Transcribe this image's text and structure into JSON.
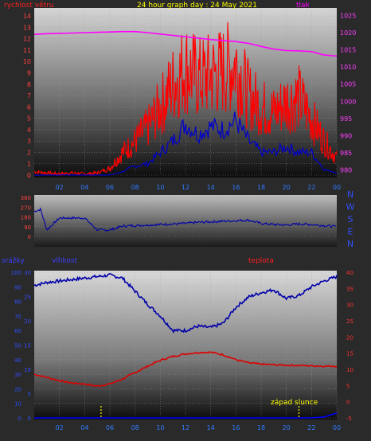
{
  "chart_data": [
    {
      "type": "line",
      "panel": "wind-pressure",
      "title": "24 hour graph day : 24 May 2021",
      "ylabel_left": "rychlost větru",
      "ylabel_right": "tlak",
      "x_ticks": [
        "02",
        "04",
        "06",
        "08",
        "10",
        "12",
        "14",
        "16",
        "18",
        "20",
        "22",
        "00"
      ],
      "y_left_ticks": [
        "0",
        "1",
        "2",
        "3",
        "4",
        "5",
        "6",
        "7",
        "8",
        "9",
        "10",
        "11",
        "12",
        "13",
        "14"
      ],
      "y_right_ticks": [
        "980",
        "985",
        "990",
        "995",
        "1000",
        "1005",
        "1010",
        "1015",
        "1020",
        "1025"
      ],
      "ylim_left": [
        0,
        14.5
      ],
      "ylim_right": [
        978.5,
        1026.5
      ],
      "x_hours": [
        0,
        1,
        2,
        3,
        4,
        5,
        6,
        7,
        8,
        9,
        10,
        11,
        12,
        13,
        14,
        15,
        16,
        17,
        18,
        19,
        20,
        21,
        22,
        23,
        24
      ],
      "series": [
        {
          "name": "tlak",
          "color": "#ff00ff",
          "axis": "right",
          "values": [
            1019.5,
            1019.7,
            1019.8,
            1019.9,
            1020.0,
            1020.1,
            1020.2,
            1020.3,
            1020.3,
            1020.0,
            1019.6,
            1019.2,
            1018.8,
            1018.4,
            1018.0,
            1017.7,
            1017.4,
            1016.9,
            1016.0,
            1015.2,
            1014.8,
            1014.7,
            1014.5,
            1013.5,
            1013.2
          ]
        },
        {
          "color": "#ff0000",
          "axis": "left",
          "values": [
            0.3,
            0.2,
            0.1,
            0.2,
            0.1,
            0.2,
            0.6,
            2.0,
            3.0,
            4.2,
            6.0,
            8.0,
            9.5,
            8.5,
            8.8,
            9.2,
            9.8,
            7.0,
            6.0,
            5.5,
            6.5,
            6.8,
            5.0,
            3.0,
            1.5
          ]
        },
        {
          "color": "#0000cc",
          "axis": "left",
          "values": [
            0.0,
            0.0,
            0.0,
            0.0,
            0.0,
            0.0,
            0.0,
            0.3,
            0.8,
            1.0,
            2.0,
            3.0,
            4.5,
            3.6,
            4.3,
            4.0,
            4.8,
            3.0,
            2.0,
            2.0,
            2.5,
            2.0,
            2.0,
            0.5,
            0.2
          ]
        }
      ]
    },
    {
      "type": "line",
      "panel": "wind-direction",
      "y_ticks": [
        "360",
        "270",
        "180",
        "90",
        "0"
      ],
      "ylim": [
        0,
        360
      ],
      "direction_labels": [
        "N",
        "W",
        "S",
        "E",
        "N"
      ],
      "x_hours": [
        0,
        0.5,
        1,
        2,
        3,
        4,
        5,
        6,
        7,
        8,
        9,
        10,
        11,
        12,
        13,
        14,
        15,
        16,
        17,
        18,
        19,
        20,
        21,
        22,
        23,
        24
      ],
      "series": [
        {
          "color": "#0000aa",
          "values": [
            230,
            250,
            60,
            170,
            170,
            170,
            60,
            60,
            95,
            100,
            105,
            110,
            115,
            120,
            130,
            135,
            140,
            145,
            150,
            120,
            110,
            105,
            115,
            110,
            100,
            90
          ]
        }
      ]
    },
    {
      "type": "line",
      "panel": "humidity-temperature-rain",
      "ylabel_left1": "srážky",
      "ylabel_left2": "vlhkost",
      "ylabel_right": "teplota",
      "annotation": "západ slunce",
      "x_ticks": [
        "02",
        "04",
        "06",
        "08",
        "10",
        "12",
        "14",
        "16",
        "18",
        "20",
        "22",
        "00"
      ],
      "y_rain_ticks": [
        "0",
        "5",
        "10",
        "15",
        "20",
        "25",
        "30"
      ],
      "y_humidity_ticks": [
        "0",
        "10",
        "20",
        "30",
        "40",
        "50",
        "60",
        "70",
        "80",
        "90",
        "100"
      ],
      "y_temp_ticks": [
        "-5",
        "0",
        "5",
        "10",
        "15",
        "20",
        "25",
        "30",
        "35",
        "40"
      ],
      "ylim_rain": [
        0,
        30
      ],
      "ylim_humidity": [
        0,
        100
      ],
      "ylim_temp": [
        -5,
        40
      ],
      "x_hours": [
        0,
        1,
        2,
        3,
        4,
        5,
        6,
        7,
        8,
        9,
        10,
        11,
        12,
        13,
        14,
        15,
        16,
        17,
        18,
        19,
        20,
        21,
        22,
        23,
        24
      ],
      "series": [
        {
          "name": "vlhkost",
          "color": "#0000aa",
          "axis": "humidity",
          "values": [
            91,
            93,
            94,
            95,
            96,
            97,
            98,
            96,
            87,
            78,
            70,
            60,
            60,
            63,
            62,
            65,
            76,
            83,
            86,
            88,
            82,
            84,
            90,
            94,
            97
          ]
        },
        {
          "name": "teplota",
          "color": "#dd0000",
          "axis": "temp",
          "values": [
            8.5,
            7.5,
            6.5,
            5.8,
            5.5,
            4.8,
            5.5,
            7.0,
            9.0,
            11.0,
            12.8,
            14.0,
            14.8,
            15.2,
            15.3,
            14.5,
            13.0,
            12.0,
            11.6,
            11.4,
            11.3,
            11.2,
            11.1,
            11.0,
            11.0
          ]
        },
        {
          "name": "srážky",
          "color": "#0000ff",
          "axis": "rain",
          "values": [
            0,
            0,
            0,
            0,
            0,
            0,
            0,
            0,
            0,
            0,
            0,
            0,
            0,
            0,
            0,
            0,
            0,
            0,
            0,
            0,
            0,
            0,
            0,
            0.2,
            1.0
          ]
        }
      ],
      "markers": [
        {
          "color": "#ffff00",
          "x_hour": 5.3
        },
        {
          "color": "#ffff00",
          "x_hour": 21.0
        }
      ]
    }
  ]
}
